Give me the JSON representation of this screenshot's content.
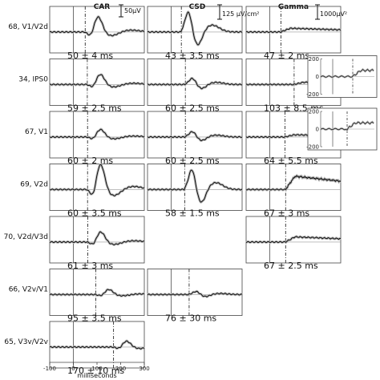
{
  "chart_data": {
    "type": "line",
    "columns": [
      "CAR",
      "CSD",
      "Gamma"
    ],
    "scale_bars": {
      "CAR": "50μV",
      "CSD": "125 μV/cm²",
      "Gamma": "1000μV²"
    },
    "rows": [
      {
        "label": "68, V1/V2d",
        "latencies": {
          "CAR": "50 ± 4 ms",
          "CSD": "43 ± 3.5 ms",
          "Gamma": "47 ± 2 ms"
        },
        "onset_ms": {
          "CAR": 50,
          "CSD": 43,
          "Gamma": 47
        }
      },
      {
        "label": "34, IPS0",
        "latencies": {
          "CAR": "59 ± 2.5 ms",
          "CSD": "60 ± 2.5 ms",
          "Gamma": "103 ± 8.5 ms"
        },
        "onset_ms": {
          "CAR": 59,
          "CSD": 60,
          "Gamma": 103
        }
      },
      {
        "label": "67, V1",
        "latencies": {
          "CAR": "60 ± 2 ms",
          "CSD": "60 ± 2.5 ms",
          "Gamma": "64 ± 5.5 ms"
        },
        "onset_ms": {
          "CAR": 60,
          "CSD": 60,
          "Gamma": 64
        }
      },
      {
        "label": "69, V2d",
        "latencies": {
          "CAR": "60 ± 3.5 ms",
          "CSD": "58 ± 1.5 ms",
          "Gamma": "67 ± 3 ms"
        },
        "onset_ms": {
          "CAR": 60,
          "CSD": 58,
          "Gamma": 67
        }
      },
      {
        "label": "70, V2d/V3d",
        "latencies": {
          "CAR": "61 ± 3 ms",
          "CSD": null,
          "Gamma": "67 ± 2.5 ms"
        },
        "onset_ms": {
          "CAR": 61,
          "CSD": null,
          "Gamma": 67
        }
      },
      {
        "label": "66, V2v/V1",
        "latencies": {
          "CAR": "95 ± 3.5 ms",
          "CSD": "76 ± 30 ms",
          "Gamma": null
        },
        "onset_ms": {
          "CAR": 95,
          "CSD": 76,
          "Gamma": null
        }
      },
      {
        "label": "65, V3v/V2v",
        "latencies": {
          "CAR": "170 ± 10 ms",
          "CSD": null,
          "Gamma": null
        },
        "onset_ms": {
          "CAR": 170,
          "CSD": null,
          "Gamma": null
        }
      }
    ],
    "xlim": [
      -100,
      300
    ],
    "xticks": [
      -100,
      0,
      100,
      200,
      300
    ],
    "xlabel": "milliseconds",
    "insets": [
      {
        "row": 1,
        "yticks": [
          200,
          0,
          -200
        ]
      },
      {
        "row": 2,
        "yticks": [
          200,
          0,
          -200
        ]
      }
    ]
  }
}
